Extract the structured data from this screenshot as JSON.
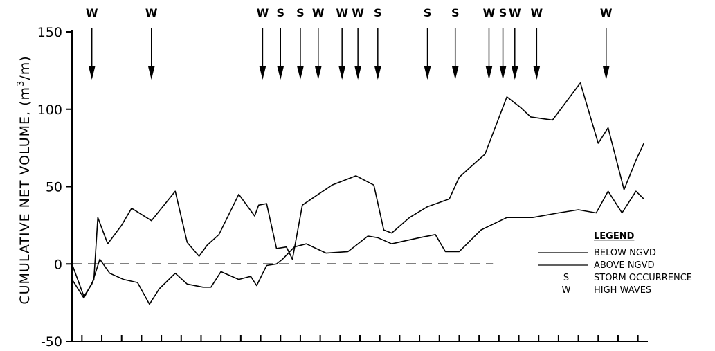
{
  "chart_data": {
    "type": "line",
    "title": "",
    "ylabel": "CUMULATIVE NET VOLUME, (m³/m)",
    "ylabel_parts": {
      "main": "CUMULATIVE NET VOLUME, (m",
      "sup": "3",
      "tail": "/m)"
    },
    "xlabel": "",
    "ylim": [
      -50,
      150
    ],
    "xlim": [
      0,
      29
    ],
    "yticks": [
      -50,
      0,
      50,
      100,
      150
    ],
    "ytick_labels": [
      "-50",
      "0",
      "50",
      "100",
      "150"
    ],
    "xticks": [
      0.5,
      1.5,
      2.5,
      3.5,
      4.5,
      5.5,
      6.5,
      7.5,
      8.5,
      9.5,
      10.5,
      11.5,
      12.5,
      13.5,
      14.5,
      15.5,
      16.5,
      17.5,
      18.5,
      19.5,
      20.5,
      21.5,
      22.5,
      23.5,
      24.5,
      25.5,
      26.5,
      27.5,
      28.5
    ],
    "zero_line": {
      "y": 0,
      "x_end": 21.2,
      "style": "dashed"
    },
    "series": [
      {
        "name": "BELOW NGVD",
        "points": [
          [
            0,
            -10
          ],
          [
            0.6,
            -22
          ],
          [
            1.1,
            -10
          ],
          [
            1.3,
            30
          ],
          [
            1.8,
            13
          ],
          [
            2.5,
            25
          ],
          [
            3.0,
            36
          ],
          [
            4.0,
            28
          ],
          [
            5.2,
            47
          ],
          [
            5.8,
            14
          ],
          [
            6.4,
            5
          ],
          [
            6.8,
            12
          ],
          [
            7.4,
            19
          ],
          [
            8.4,
            45
          ],
          [
            9.2,
            31
          ],
          [
            9.4,
            38
          ],
          [
            9.8,
            39
          ],
          [
            10.3,
            10
          ],
          [
            10.8,
            11
          ],
          [
            11.1,
            3
          ],
          [
            11.6,
            38
          ],
          [
            12.4,
            45
          ],
          [
            13.1,
            51
          ],
          [
            14.3,
            57
          ],
          [
            15.2,
            51
          ],
          [
            15.7,
            22
          ],
          [
            16.1,
            20
          ],
          [
            17.0,
            30
          ],
          [
            17.9,
            37
          ],
          [
            19.0,
            42
          ],
          [
            19.5,
            56
          ],
          [
            20.1,
            63
          ],
          [
            20.8,
            71
          ],
          [
            21.9,
            108
          ],
          [
            22.6,
            101
          ],
          [
            23.1,
            95
          ],
          [
            24.2,
            93
          ],
          [
            25.6,
            117
          ],
          [
            26.5,
            78
          ],
          [
            27.0,
            88
          ],
          [
            27.8,
            48
          ],
          [
            28.4,
            67
          ],
          [
            28.8,
            78
          ]
        ]
      },
      {
        "name": "ABOVE NGVD",
        "points": [
          [
            0,
            0
          ],
          [
            0.6,
            -21
          ],
          [
            1.0,
            -13
          ],
          [
            1.4,
            3
          ],
          [
            1.9,
            -6
          ],
          [
            2.6,
            -10
          ],
          [
            3.3,
            -12
          ],
          [
            3.9,
            -26
          ],
          [
            4.4,
            -16
          ],
          [
            5.2,
            -6
          ],
          [
            5.8,
            -13
          ],
          [
            6.6,
            -15
          ],
          [
            7.0,
            -15
          ],
          [
            7.5,
            -5
          ],
          [
            8.4,
            -10
          ],
          [
            9.0,
            -8
          ],
          [
            9.3,
            -14
          ],
          [
            9.8,
            -1
          ],
          [
            10.3,
            0
          ],
          [
            10.6,
            3
          ],
          [
            11.2,
            11
          ],
          [
            11.8,
            13
          ],
          [
            12.8,
            7
          ],
          [
            13.9,
            8
          ],
          [
            14.9,
            18
          ],
          [
            15.4,
            17
          ],
          [
            16.1,
            13
          ],
          [
            16.8,
            15
          ],
          [
            17.5,
            17
          ],
          [
            18.3,
            19
          ],
          [
            18.8,
            8
          ],
          [
            19.5,
            8
          ],
          [
            20.6,
            22
          ],
          [
            21.9,
            30
          ],
          [
            22.6,
            30
          ],
          [
            23.2,
            30
          ],
          [
            24.5,
            33
          ],
          [
            25.5,
            35
          ],
          [
            26.4,
            33
          ],
          [
            27.0,
            47
          ],
          [
            27.7,
            33
          ],
          [
            28.4,
            47
          ],
          [
            28.8,
            42
          ]
        ]
      }
    ],
    "event_markers": [
      {
        "label": "W",
        "x": 1.0
      },
      {
        "label": "W",
        "x": 4.0
      },
      {
        "label": "W",
        "x": 9.6
      },
      {
        "label": "S",
        "x": 10.5
      },
      {
        "label": "S",
        "x": 11.5
      },
      {
        "label": "W",
        "x": 12.4
      },
      {
        "label": "W",
        "x": 13.6
      },
      {
        "label": "W",
        "x": 14.4
      },
      {
        "label": "S",
        "x": 15.4
      },
      {
        "label": "S",
        "x": 17.9
      },
      {
        "label": "S",
        "x": 19.3
      },
      {
        "label": "W",
        "x": 21.0
      },
      {
        "label": "S",
        "x": 21.7
      },
      {
        "label": "W",
        "x": 22.3
      },
      {
        "label": "W",
        "x": 23.4
      },
      {
        "label": "W",
        "x": 26.9
      }
    ],
    "legend": {
      "title": "LEGEND",
      "placement": "right",
      "entries": [
        {
          "symbol": "line",
          "text": "BELOW NGVD"
        },
        {
          "symbol": "line",
          "text": "ABOVE NGVD"
        },
        {
          "symbol": "S",
          "text": "STORM OCCURRENCE"
        },
        {
          "symbol": "W",
          "text": "HIGH WAVES"
        }
      ]
    },
    "grid": false
  }
}
